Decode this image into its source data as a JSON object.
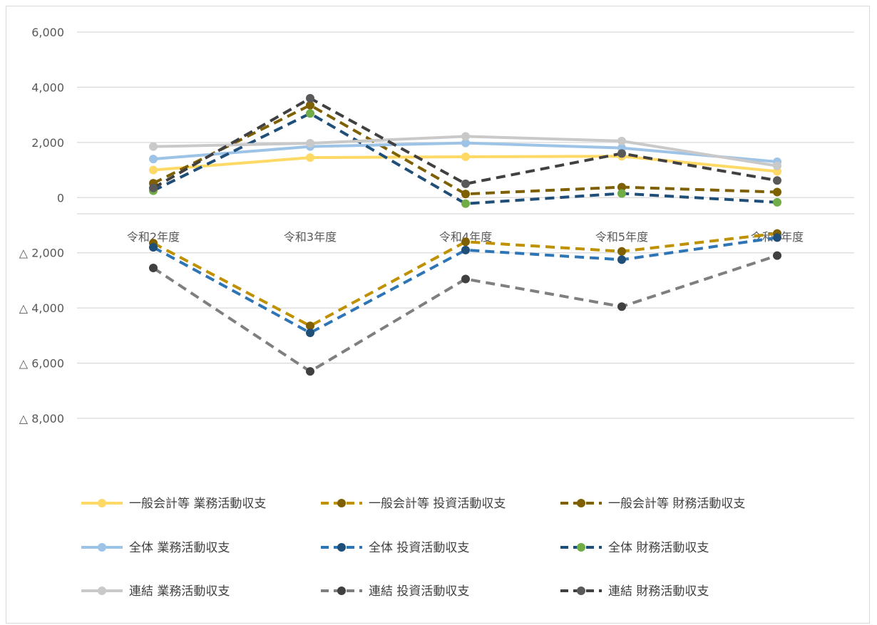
{
  "chart_data": {
    "type": "line",
    "categories": [
      "令和2年度",
      "令和3年度",
      "令和4年度",
      "令和5年度",
      "令和6年度"
    ],
    "ylim": [
      -8000,
      6000
    ],
    "yticks": [
      {
        "value": 6000,
        "label": "6,000"
      },
      {
        "value": 4000,
        "label": "4,000"
      },
      {
        "value": 2000,
        "label": "2,000"
      },
      {
        "value": 0,
        "label": "0"
      },
      {
        "value": -2000,
        "label": "△ 2,000"
      },
      {
        "value": -4000,
        "label": "△ 4,000"
      },
      {
        "value": -6000,
        "label": "△ 6,000"
      },
      {
        "value": -8000,
        "label": "△ 8,000"
      }
    ],
    "grid": true,
    "legend_position": "bottom",
    "series": [
      {
        "name": "一般会計等 業務活動収支",
        "values": [
          1000,
          1450,
          1480,
          1500,
          950
        ],
        "color": "#FFD966",
        "marker": "#FFD966",
        "dash": "solid"
      },
      {
        "name": "一般会計等 投資活動収支",
        "values": [
          -1650,
          -4650,
          -1600,
          -1950,
          -1300
        ],
        "color": "#BF9000",
        "marker": "#7F6000",
        "dash": "dash"
      },
      {
        "name": "一般会計等 財務活動収支",
        "values": [
          520,
          3350,
          130,
          380,
          200
        ],
        "color": "#7F6000",
        "marker": "#7F6000",
        "dash": "dash"
      },
      {
        "name": "全体 業務活動収支",
        "values": [
          1400,
          1850,
          1980,
          1800,
          1300
        ],
        "color": "#9DC3E6",
        "marker": "#9DC3E6",
        "dash": "solid"
      },
      {
        "name": "全体 投資活動収支",
        "values": [
          -1800,
          -4900,
          -1900,
          -2250,
          -1450
        ],
        "color": "#2E75B6",
        "marker": "#1F4E79",
        "dash": "dash"
      },
      {
        "name": "全体 財務活動収支",
        "values": [
          250,
          3050,
          -220,
          150,
          -170
        ],
        "color": "#1F4E79",
        "marker": "#70AD47",
        "dash": "dash"
      },
      {
        "name": "連結 業務活動収支",
        "values": [
          1850,
          1970,
          2220,
          2050,
          1150
        ],
        "color": "#C9C9C9",
        "marker": "#C9C9C9",
        "dash": "solid"
      },
      {
        "name": "連結 投資活動収支",
        "values": [
          -2550,
          -6300,
          -2950,
          -3950,
          -2100
        ],
        "color": "#7F7F7F",
        "marker": "#404040",
        "dash": "dash"
      },
      {
        "name": "連結 財務活動収支",
        "values": [
          350,
          3600,
          500,
          1600,
          620
        ],
        "color": "#404040",
        "marker": "#595959",
        "dash": "dash"
      }
    ]
  }
}
